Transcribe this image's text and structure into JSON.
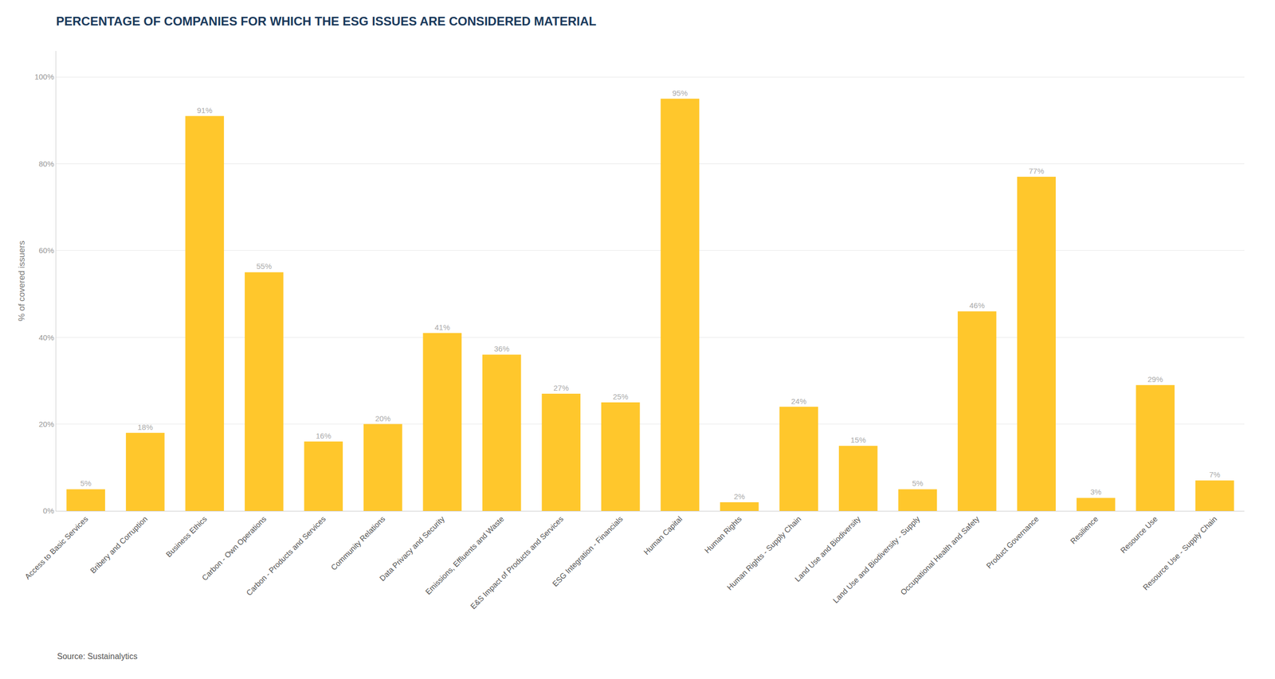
{
  "chart_data": {
    "type": "bar",
    "title": "PERCENTAGE OF COMPANIES FOR WHICH THE ESG ISSUES ARE CONSIDERED MATERIAL",
    "ylabel": "% of covered issuers",
    "source": "Source: Sustainalytics",
    "categories": [
      "Access to Basic Services",
      "Bribery and Corruption",
      "Business Ethics",
      "Carbon - Own Operations",
      "Carbon - Products and Services",
      "Community Relations",
      "Data Privacy and Security",
      "Emissions, Effluents and Waste",
      "E&S Impact of Products and Services",
      "ESG Integration - Financials",
      "Human Capital",
      "Human Rights",
      "Human Rights - Supply Chain",
      "Land Use and Biodiversity",
      "Land Use and Biodiversity - Supply",
      "Occupational Health and Safety",
      "Product Governance",
      "Resilience",
      "Resource Use",
      "Resource Use - Supply Chain"
    ],
    "values": [
      5,
      18,
      91,
      55,
      16,
      20,
      41,
      36,
      27,
      25,
      95,
      2,
      24,
      15,
      5,
      46,
      77,
      3,
      29,
      7
    ],
    "value_labels": [
      "5%",
      "18%",
      "91%",
      "55%",
      "16%",
      "20%",
      "41%",
      "36%",
      "27%",
      "25%",
      "95%",
      "2%",
      "24%",
      "15%",
      "5%",
      "46%",
      "77%",
      "3%",
      "29%",
      "7%"
    ],
    "data_labels": true,
    "color": "#FFC72C",
    "ylim": [
      0,
      106
    ],
    "yticks": [
      {
        "value": 0,
        "label": "0%"
      },
      {
        "value": 20,
        "label": "20%"
      },
      {
        "value": 40,
        "label": "40%"
      },
      {
        "value": 60,
        "label": "60%"
      },
      {
        "value": 80,
        "label": "80%"
      },
      {
        "value": 100,
        "label": "100%"
      }
    ],
    "grid": true
  }
}
